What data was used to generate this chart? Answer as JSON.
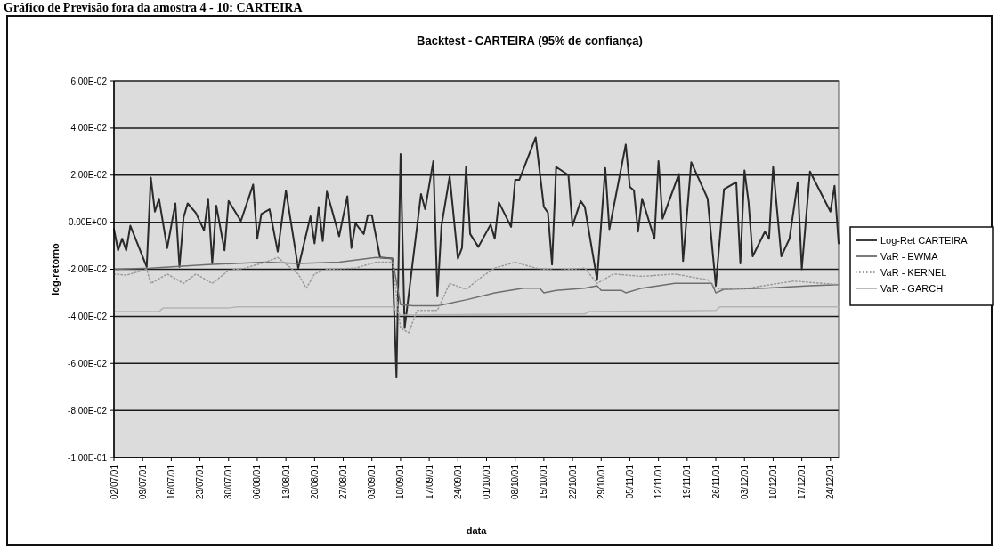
{
  "chart_data": {
    "type": "line",
    "title": "Backtest - CARTEIRA (95% de confiança)",
    "xlabel": "data",
    "ylabel": "log-retorno",
    "annotations": [
      "Gráfico de Previsão fora da amostra 4 - 10: CARTEIRA"
    ],
    "ylim": [
      -0.1,
      0.06
    ],
    "yticks": [
      {
        "value": 0.06,
        "label": "6.00E-02"
      },
      {
        "value": 0.04,
        "label": "4.00E-02"
      },
      {
        "value": 0.02,
        "label": "2.00E-02"
      },
      {
        "value": 0,
        "label": "0.00E+00"
      },
      {
        "value": -0.02,
        "label": "-2.00E-02"
      },
      {
        "value": -0.04,
        "label": "-4.00E-02"
      },
      {
        "value": -0.06,
        "label": "-6.00E-02"
      },
      {
        "value": -0.08,
        "label": "-8.00E-02"
      },
      {
        "value": -0.1,
        "label": "-1.00E-01"
      }
    ],
    "xlim": [
      "--07-02",
      "--12-26"
    ],
    "xticks": [
      {
        "value": "--07-02",
        "label": "02/07/01"
      },
      {
        "value": "--07-09",
        "label": "09/07/01"
      },
      {
        "value": "--07-16",
        "label": "16/07/01"
      },
      {
        "value": "--07-23",
        "label": "23/07/01"
      },
      {
        "value": "--07-30",
        "label": "30/07/01"
      },
      {
        "value": "--08-06",
        "label": "06/08/01"
      },
      {
        "value": "--08-13",
        "label": "13/08/01"
      },
      {
        "value": "--08-20",
        "label": "20/08/01"
      },
      {
        "value": "--08-27",
        "label": "27/08/01"
      },
      {
        "value": "--09-03",
        "label": "03/09/01"
      },
      {
        "value": "--09-10",
        "label": "10/09/01"
      },
      {
        "value": "--09-17",
        "label": "17/09/01"
      },
      {
        "value": "--09-24",
        "label": "24/09/01"
      },
      {
        "value": "--10-01",
        "label": "01/10/01"
      },
      {
        "value": "--10-08",
        "label": "08/10/01"
      },
      {
        "value": "--10-15",
        "label": "15/10/01"
      },
      {
        "value": "--10-22",
        "label": "22/10/01"
      },
      {
        "value": "--10-29",
        "label": "29/10/01"
      },
      {
        "value": "--11-05",
        "label": "05/11/01"
      },
      {
        "value": "--11-12",
        "label": "12/11/01"
      },
      {
        "value": "--11-19",
        "label": "19/11/01"
      },
      {
        "value": "--11-26",
        "label": "26/11/01"
      },
      {
        "value": "--12-03",
        "label": "03/12/01"
      },
      {
        "value": "--12-10",
        "label": "10/12/01"
      },
      {
        "value": "--12-17",
        "label": "17/12/01"
      },
      {
        "value": "--12-24",
        "label": "24/12/01"
      }
    ],
    "grid": "y",
    "legend": "right",
    "marker": "none",
    "series": [
      {
        "name": "Log-Ret CARTEIRA",
        "color": "#2a2a2a",
        "line_style": "solid",
        "x": [
          "--07-02",
          "--07-03",
          "--07-04",
          "--07-05",
          "--07-06",
          "--07-10",
          "--07-11",
          "--07-12",
          "--07-13",
          "--07-15",
          "--07-17",
          "--07-18",
          "--07-19",
          "--07-20",
          "--07-22",
          "--07-24",
          "--07-25",
          "--07-26",
          "--07-27",
          "--07-29",
          "--07-30",
          "--08-02",
          "--08-05",
          "--08-06",
          "--08-07",
          "--08-09",
          "--08-11",
          "--08-13",
          "--08-16",
          "--08-19",
          "--08-20",
          "--08-21",
          "--08-22",
          "--08-23",
          "--08-26",
          "--08-28",
          "--08-29",
          "--08-30",
          "--09-01",
          "--09-02",
          "--09-03",
          "--09-05",
          "--09-08",
          "--09-09",
          "--09-10",
          "--09-11",
          "--09-15",
          "--09-16",
          "--09-18",
          "--09-19",
          "--09-20",
          "--09-22",
          "--09-24",
          "--09-25",
          "--09-26",
          "--09-27",
          "--09-29",
          "--10-02",
          "--10-03",
          "--10-04",
          "--10-07",
          "--10-08",
          "--10-09",
          "--10-13",
          "--10-15",
          "--10-16",
          "--10-17",
          "--10-18",
          "--10-21",
          "--10-22",
          "--10-24",
          "--10-25",
          "--10-28",
          "--10-30",
          "--10-31",
          "--11-04",
          "--11-05",
          "--11-06",
          "--11-07",
          "--11-08",
          "--11-11",
          "--11-12",
          "--11-13",
          "--11-17",
          "--11-18",
          "--11-20",
          "--11-24",
          "--11-26",
          "--11-28",
          "--12-01",
          "--12-02",
          "--12-03",
          "--12-04",
          "--12-05",
          "--12-08",
          "--12-09",
          "--12-10",
          "--12-12",
          "--12-14",
          "--12-16",
          "--12-17",
          "--12-19",
          "--12-24",
          "--12-25",
          "--12-26"
        ],
        "values": [
          -0.003,
          -0.012,
          -0.007,
          -0.012,
          -0.0015,
          -0.019,
          0.019,
          0.0045,
          0.01,
          -0.011,
          0.008,
          -0.019,
          0.002,
          0.008,
          0.004,
          -0.0035,
          0.01,
          -0.0175,
          0.007,
          -0.012,
          0.009,
          0.0005,
          0.016,
          -0.007,
          0.0035,
          0.0055,
          -0.0125,
          0.0135,
          -0.0195,
          0.0025,
          -0.009,
          0.0065,
          -0.008,
          0.013,
          -0.006,
          0.011,
          -0.011,
          -0.0005,
          -0.005,
          0.003,
          0.003,
          -0.015,
          -0.0155,
          -0.066,
          0.029,
          -0.045,
          0.012,
          0.0055,
          0.026,
          -0.0315,
          -0.0015,
          0.0195,
          -0.0155,
          -0.011,
          0.0235,
          -0.005,
          -0.0105,
          -0.001,
          -0.007,
          0.0085,
          -0.002,
          0.018,
          0.018,
          0.036,
          0.0065,
          0.004,
          -0.018,
          0.0235,
          0.02,
          -0.0015,
          0.009,
          0.0065,
          -0.0245,
          0.023,
          -0.003,
          0.033,
          0.015,
          0.0135,
          -0.004,
          0.01,
          -0.007,
          0.026,
          0.0015,
          0.0205,
          -0.0165,
          0.0255,
          0.01,
          -0.027,
          0.014,
          0.017,
          -0.0175,
          0.022,
          0.0085,
          -0.0145,
          -0.004,
          -0.007,
          0.0235,
          -0.0145,
          -0.007,
          0.017,
          -0.02,
          0.0215,
          0.0045,
          0.0155,
          -0.009
        ]
      },
      {
        "name": "VaR - EWMA",
        "color": "#6e6e6e",
        "line_style": "solid",
        "x": [
          "--07-02",
          "--07-11",
          "--07-25",
          "--08-08",
          "--08-16",
          "--08-26",
          "--09-04",
          "--09-08",
          "--09-10",
          "--09-13",
          "--09-19",
          "--09-26",
          "--10-03",
          "--10-10",
          "--10-14",
          "--10-15",
          "--10-18",
          "--10-25",
          "--10-28",
          "--10-29",
          "--11-03",
          "--11-04",
          "--11-08",
          "--11-16",
          "--11-25",
          "--11-26",
          "--11-28",
          "--12-08",
          "--12-19",
          "--12-26"
        ],
        "values": [
          -0.02,
          -0.0195,
          -0.018,
          -0.017,
          -0.0175,
          -0.017,
          -0.015,
          -0.0155,
          -0.035,
          -0.0355,
          -0.0355,
          -0.033,
          -0.03,
          -0.028,
          -0.028,
          -0.03,
          -0.029,
          -0.028,
          -0.027,
          -0.029,
          -0.029,
          -0.03,
          -0.028,
          -0.026,
          -0.026,
          -0.03,
          -0.0285,
          -0.028,
          -0.027,
          -0.0265
        ]
      },
      {
        "name": "VaR - KERNEL",
        "color": "#9a9a9a",
        "line_style": "dotted",
        "x": [
          "--07-02",
          "--07-05",
          "--07-10",
          "--07-11",
          "--07-15",
          "--07-19",
          "--07-22",
          "--07-26",
          "--07-30",
          "--08-03",
          "--08-08",
          "--08-11",
          "--08-16",
          "--08-18",
          "--08-20",
          "--08-23",
          "--08-30",
          "--09-04",
          "--09-08",
          "--09-10",
          "--09-12",
          "--09-14",
          "--09-19",
          "--09-22",
          "--09-26",
          "--09-30",
          "--10-03",
          "--10-08",
          "--10-13",
          "--10-18",
          "--10-25",
          "--10-28",
          "--11-01",
          "--11-08",
          "--11-16",
          "--11-24",
          "--11-26",
          "--11-28",
          "--12-04",
          "--12-15",
          "--12-26"
        ],
        "values": [
          -0.022,
          -0.0225,
          -0.02,
          -0.026,
          -0.022,
          -0.026,
          -0.022,
          -0.026,
          -0.0205,
          -0.0195,
          -0.017,
          -0.015,
          -0.022,
          -0.028,
          -0.022,
          -0.02,
          -0.0195,
          -0.017,
          -0.017,
          -0.045,
          -0.047,
          -0.0375,
          -0.0375,
          -0.026,
          -0.0285,
          -0.023,
          -0.0195,
          -0.017,
          -0.0195,
          -0.0205,
          -0.0195,
          -0.026,
          -0.022,
          -0.023,
          -0.022,
          -0.0245,
          -0.028,
          -0.0285,
          -0.028,
          -0.025,
          -0.0265
        ]
      },
      {
        "name": "VaR - GARCH",
        "color": "#b4b4b4",
        "line_style": "solid",
        "x": [
          "--07-02",
          "--07-13",
          "--07-14",
          "--07-30",
          "--08-01",
          "--09-08",
          "--09-10",
          "--10-15",
          "--10-25",
          "--10-26",
          "--11-26",
          "--11-27",
          "--12-26"
        ],
        "values": [
          -0.038,
          -0.038,
          -0.0365,
          -0.0365,
          -0.036,
          -0.036,
          -0.0395,
          -0.039,
          -0.039,
          -0.038,
          -0.0375,
          -0.036,
          -0.036
        ]
      }
    ]
  }
}
